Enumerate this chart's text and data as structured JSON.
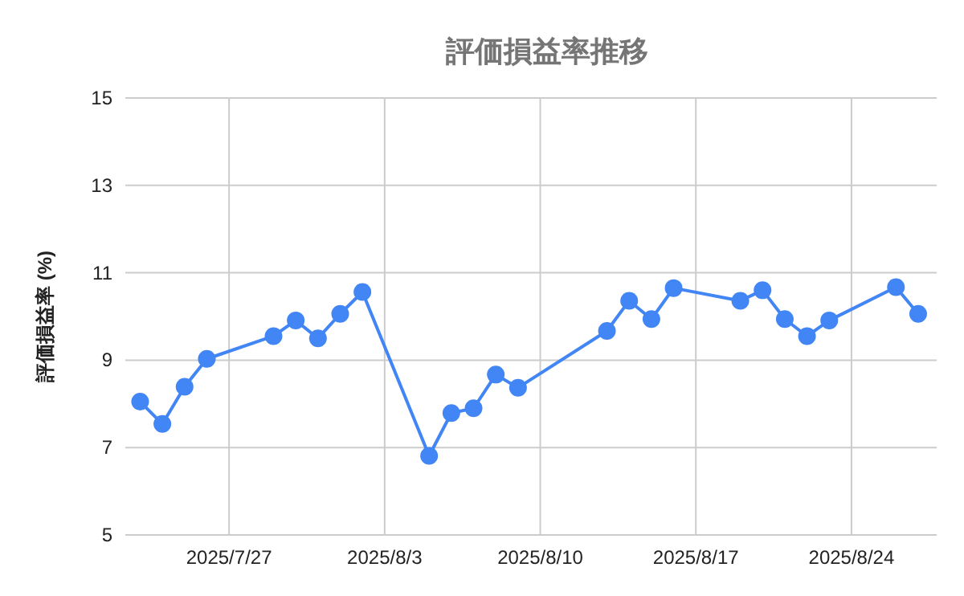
{
  "chart_data": {
    "type": "line",
    "title": "評価損益率推移",
    "ylabel": "評価損益率 (%)",
    "x": [
      "2025-07-23",
      "2025-07-24",
      "2025-07-25",
      "2025-07-26",
      "2025-07-29",
      "2025-07-30",
      "2025-07-31",
      "2025-08-01",
      "2025-08-02",
      "2025-08-05",
      "2025-08-06",
      "2025-08-07",
      "2025-08-08",
      "2025-08-09",
      "2025-08-13",
      "2025-08-14",
      "2025-08-15",
      "2025-08-16",
      "2025-08-19",
      "2025-08-20",
      "2025-08-21",
      "2025-08-22",
      "2025-08-23",
      "2025-08-26",
      "2025-08-27"
    ],
    "series": [
      {
        "color": "#4285f4",
        "values": [
          8.05,
          7.54,
          8.39,
          9.03,
          9.55,
          9.91,
          9.5,
          10.06,
          10.56,
          6.81,
          7.79,
          7.9,
          8.67,
          8.37,
          9.67,
          10.36,
          9.94,
          10.65,
          10.36,
          10.6,
          9.94,
          9.55,
          9.91,
          10.67,
          10.06
        ]
      }
    ],
    "xlim": [
      "2025-07-22T08:00",
      "2025-08-27T20:00"
    ],
    "xticks": [
      {
        "value": "2025-07-27",
        "label": "2025/7/27"
      },
      {
        "value": "2025-08-03",
        "label": "2025/8/3"
      },
      {
        "value": "2025-08-10",
        "label": "2025/8/10"
      },
      {
        "value": "2025-08-17",
        "label": "2025/8/17"
      },
      {
        "value": "2025-08-24",
        "label": "2025/8/24"
      }
    ],
    "ylim": [
      5,
      15
    ],
    "yticks": [
      5,
      7,
      9,
      11,
      13,
      15
    ],
    "grid": true,
    "marker": "circle",
    "line_style": "solid"
  }
}
